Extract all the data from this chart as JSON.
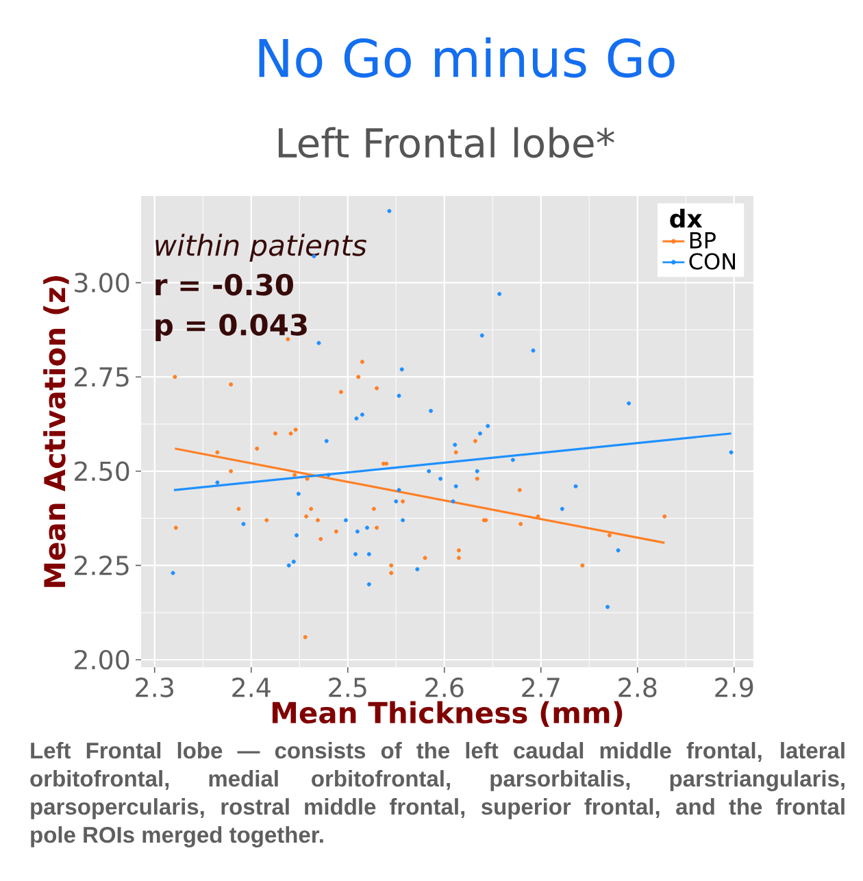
{
  "chart_data": {
    "type": "scatter",
    "title": "No Go minus Go",
    "subtitle": "Left Frontal lobe*",
    "xlabel": "Mean Thickness (mm)",
    "ylabel": "Mean Activation (z)",
    "legend_title": "dx",
    "xlim": [
      2.286,
      2.92
    ],
    "ylim": [
      1.98,
      3.23
    ],
    "xticks": [
      2.3,
      2.4,
      2.5,
      2.6,
      2.7,
      2.8,
      2.9
    ],
    "yticks": [
      {
        "value": 2,
        "label": "2.00"
      },
      {
        "value": 2.25,
        "label": "2.25"
      },
      {
        "value": 2.5,
        "label": "2.50"
      },
      {
        "value": 2.75,
        "label": "2.75"
      },
      {
        "value": 3,
        "label": "3.00"
      }
    ],
    "grid": true,
    "legend": "top right",
    "annotations": [
      "within patients",
      "r = -0.30",
      "p = 0.043",
      "Left Frontal lobe — consists of the left caudal middle frontal, lateral orbitofrontal, medial orbitofrontal, parsorbitalis, parstriangularis, parsopercularis, rostral middle frontal, superior frontal, and the frontal pole ROIs merged together."
    ],
    "series": [
      {
        "name": "BP",
        "marker": "circle",
        "color": "#ff7f24",
        "x": [
          2.438,
          2.515,
          2.321,
          2.511,
          2.379,
          2.53,
          2.493,
          2.425,
          2.441,
          2.446,
          2.365,
          2.406,
          2.379,
          2.445,
          2.458,
          2.387,
          2.416,
          2.462,
          2.457,
          2.469,
          2.488,
          2.472,
          2.527,
          2.53,
          2.545,
          2.545,
          2.456,
          2.322,
          2.537,
          2.54,
          2.557,
          2.58,
          2.632,
          2.612,
          2.634,
          2.678,
          2.641,
          2.643,
          2.679,
          2.697,
          2.771,
          2.828,
          2.743,
          2.615,
          2.615
        ],
        "values": [
          2.85,
          2.79,
          2.75,
          2.75,
          2.73,
          2.72,
          2.71,
          2.6,
          2.6,
          2.61,
          2.55,
          2.56,
          2.5,
          2.49,
          2.48,
          2.4,
          2.37,
          2.4,
          2.38,
          2.37,
          2.34,
          2.32,
          2.4,
          2.35,
          2.25,
          2.23,
          2.06,
          2.35,
          2.52,
          2.52,
          2.42,
          2.27,
          2.58,
          2.55,
          2.48,
          2.45,
          2.37,
          2.37,
          2.36,
          2.38,
          2.33,
          2.38,
          2.25,
          2.29,
          2.27
        ]
      },
      {
        "name": "CON",
        "marker": "circle",
        "color": "#1e90ff",
        "x": [
          2.543,
          2.465,
          2.47,
          2.556,
          2.553,
          2.586,
          2.509,
          2.515,
          2.657,
          2.639,
          2.692,
          2.791,
          2.645,
          2.637,
          2.611,
          2.478,
          2.365,
          2.48,
          2.449,
          2.392,
          2.498,
          2.447,
          2.51,
          2.52,
          2.508,
          2.522,
          2.444,
          2.439,
          2.522,
          2.319,
          2.584,
          2.596,
          2.553,
          2.55,
          2.557,
          2.572,
          2.609,
          2.612,
          2.634,
          2.671,
          2.736,
          2.722,
          2.78,
          2.769,
          2.897
        ],
        "values": [
          3.19,
          3.07,
          2.84,
          2.77,
          2.7,
          2.66,
          2.64,
          2.65,
          2.97,
          2.86,
          2.82,
          2.68,
          2.62,
          2.6,
          2.57,
          2.58,
          2.47,
          2.49,
          2.44,
          2.36,
          2.37,
          2.33,
          2.34,
          2.35,
          2.28,
          2.28,
          2.26,
          2.25,
          2.2,
          2.23,
          2.5,
          2.48,
          2.45,
          2.42,
          2.37,
          2.24,
          2.42,
          2.46,
          2.5,
          2.53,
          2.46,
          2.4,
          2.29,
          2.14,
          2.55
        ]
      },
      {
        "type": "line",
        "marker": "none",
        "color": "#ff7f24",
        "x": [
          2.321,
          2.828
        ],
        "values": [
          2.56,
          2.31
        ]
      },
      {
        "type": "line",
        "marker": "none",
        "color": "#1e90ff",
        "x": [
          2.32,
          2.897
        ],
        "values": [
          2.45,
          2.6
        ]
      }
    ]
  }
}
